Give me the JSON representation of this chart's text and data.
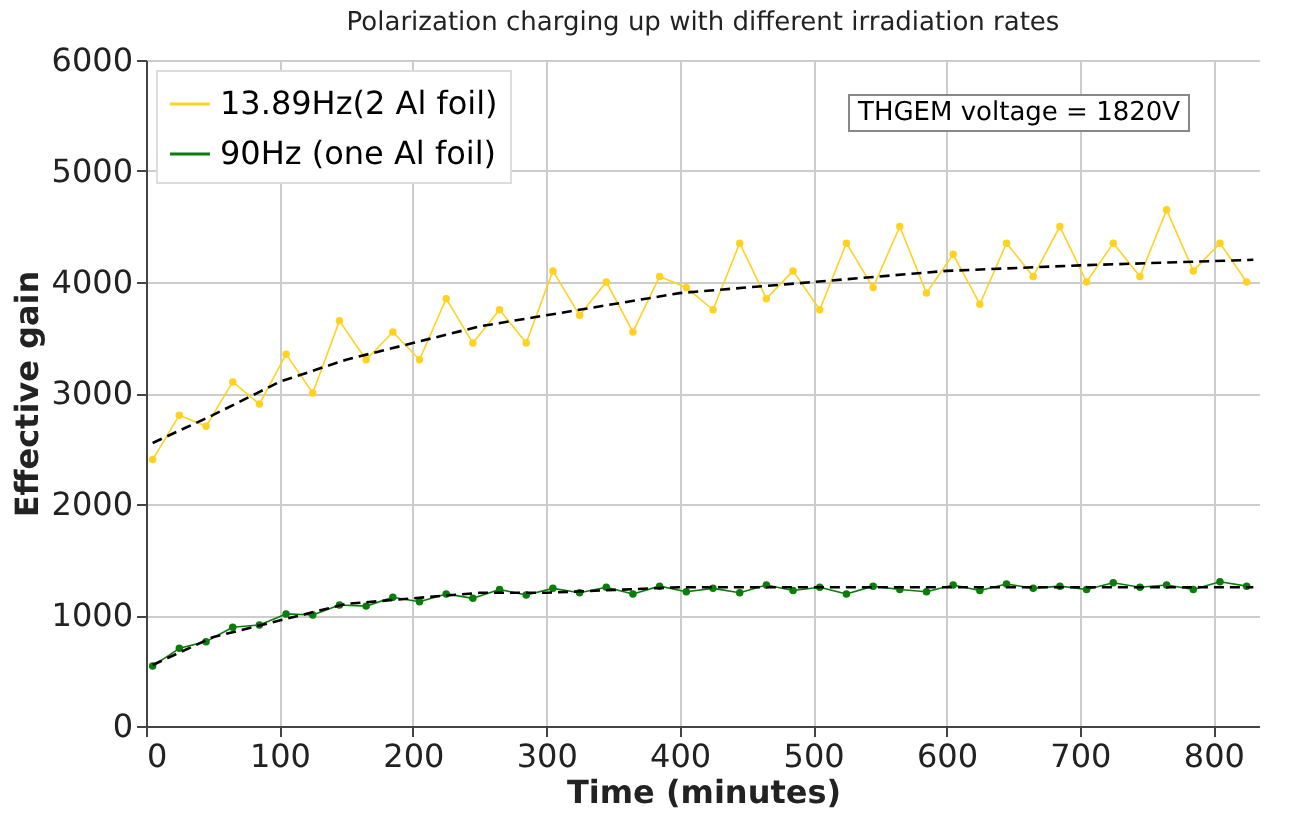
{
  "chart_data": {
    "type": "line",
    "title": "Polarization charging up with different irradiation rates",
    "xlabel": "Time (minutes)",
    "ylabel": "Effective gain",
    "annotations": [
      "THGEM voltage = 1820V"
    ],
    "xlim": [
      0,
      835
    ],
    "xticks": [
      0,
      100,
      200,
      300,
      400,
      500,
      600,
      700,
      800
    ],
    "ylim": [
      0,
      6000
    ],
    "yticks": [
      0,
      1000,
      2000,
      3000,
      4000,
      5000,
      6000
    ],
    "grid": true,
    "legend": "top left",
    "marker": "circle",
    "line_style": "solid",
    "x": [
      5,
      25,
      45,
      65,
      85,
      105,
      125,
      145,
      165,
      185,
      205,
      225,
      245,
      265,
      285,
      305,
      325,
      345,
      365,
      385,
      405,
      425,
      445,
      465,
      485,
      505,
      525,
      545,
      565,
      585,
      605,
      625,
      645,
      665,
      685,
      705,
      725,
      745,
      765,
      785,
      805,
      825
    ],
    "series": [
      {
        "name": "13.89Hz(2 Al foil)",
        "color": "#ffd21f",
        "values": [
          2400,
          2800,
          2700,
          3100,
          2900,
          3350,
          3000,
          3650,
          3300,
          3550,
          3300,
          3850,
          3450,
          3750,
          3450,
          4100,
          3700,
          4000,
          3550,
          4050,
          3950,
          3750,
          4350,
          3850,
          4100,
          3750,
          4350,
          3950,
          4500,
          3900,
          4250,
          3800,
          4350,
          4050,
          4500,
          4000,
          4350,
          4050,
          4650,
          4100,
          4350,
          4000
        ]
      },
      {
        "name": "90Hz (one Al foil)",
        "color": "#0a7d0a",
        "values": [
          540,
          700,
          760,
          890,
          910,
          1010,
          1000,
          1090,
          1080,
          1160,
          1120,
          1190,
          1150,
          1230,
          1180,
          1240,
          1200,
          1250,
          1190,
          1260,
          1210,
          1240,
          1200,
          1270,
          1220,
          1250,
          1190,
          1260,
          1230,
          1210,
          1270,
          1220,
          1280,
          1240,
          1260,
          1230,
          1290,
          1250,
          1270,
          1230,
          1300,
          1260
        ]
      },
      {
        "type": "line",
        "color": "#000000",
        "marker": "none",
        "line_style": "dashed",
        "x": [
          5,
          50,
          100,
          150,
          200,
          250,
          300,
          400,
          500,
          600,
          700,
          830
        ],
        "values": [
          2550,
          2800,
          3100,
          3300,
          3450,
          3600,
          3700,
          3900,
          4000,
          4100,
          4150,
          4200
        ]
      },
      {
        "type": "line",
        "color": "#000000",
        "marker": "none",
        "line_style": "dashed",
        "x": [
          5,
          50,
          100,
          150,
          200,
          250,
          300,
          400,
          500,
          600,
          700,
          830
        ],
        "values": [
          550,
          800,
          950,
          1100,
          1150,
          1200,
          1200,
          1250,
          1250,
          1250,
          1250,
          1250
        ]
      }
    ]
  }
}
